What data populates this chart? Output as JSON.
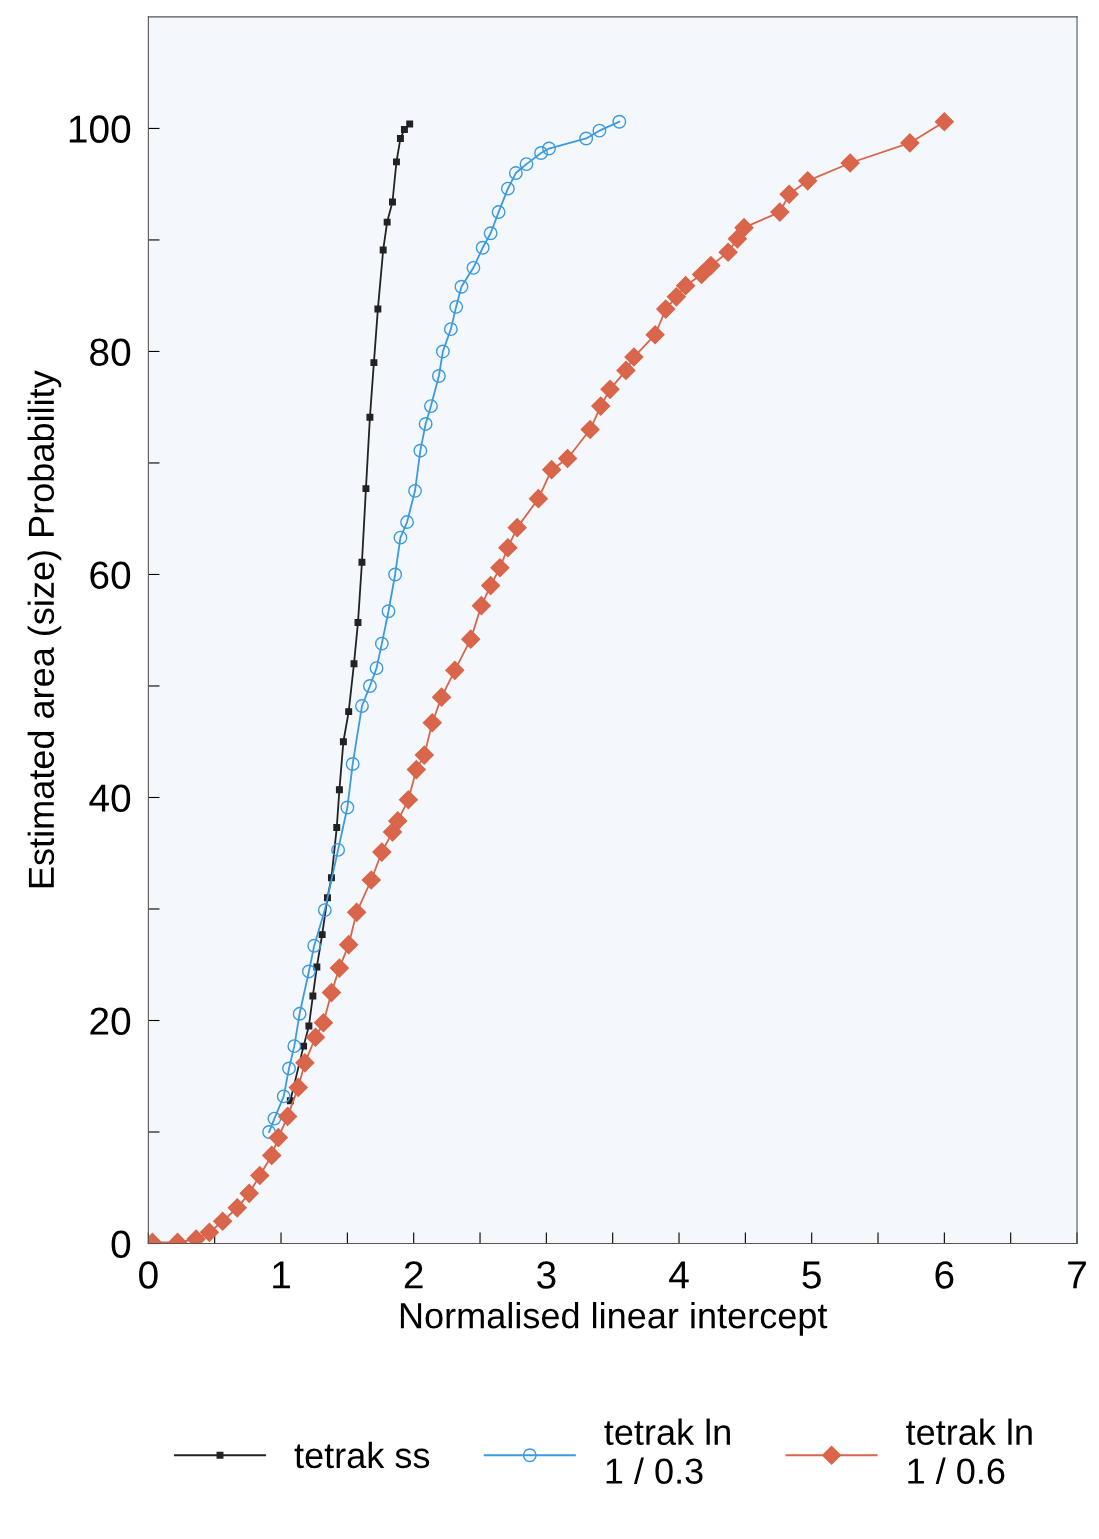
{
  "chart_data": {
    "type": "line",
    "xlabel": "Normalised linear intercept",
    "ylabel": "Estimated area (size) Probability",
    "xlim": [
      0,
      7
    ],
    "ylim": [
      0,
      110
    ],
    "xticks": [
      0,
      {
        "value": 0.5,
        "label": null
      },
      1,
      {
        "value": 1.5,
        "label": null
      },
      2,
      {
        "value": 2.5,
        "label": null
      },
      3,
      {
        "value": 3.5,
        "label": null
      },
      4,
      {
        "value": 4.5,
        "label": null
      },
      5,
      {
        "value": 5.5,
        "label": null
      },
      6,
      {
        "value": 6.5,
        "label": null
      },
      7
    ],
    "yticks": [
      0,
      {
        "value": 10,
        "label": null
      },
      20,
      {
        "value": 30,
        "label": null
      },
      40,
      {
        "value": 50,
        "label": null
      },
      60,
      {
        "value": 70,
        "label": null
      },
      80,
      {
        "value": 90,
        "label": null
      },
      100
    ],
    "grid": false,
    "legend": "bottom",
    "line_style": "solid",
    "series": [
      {
        "name": "tetrak ss",
        "color": "#222222",
        "marker": "square",
        "x": [
          1.07,
          1.17,
          1.21,
          1.24,
          1.27,
          1.31,
          1.35,
          1.38,
          1.42,
          1.44,
          1.47,
          1.51,
          1.55,
          1.58,
          1.61,
          1.64,
          1.67,
          1.7,
          1.73,
          1.77,
          1.8,
          1.84,
          1.87,
          1.9,
          1.93,
          1.97
        ],
        "values": [
          12.8,
          17.7,
          19.5,
          22.2,
          24.8,
          27.7,
          31.0,
          32.8,
          37.3,
          40.7,
          45.0,
          47.7,
          52.0,
          55.7,
          61.1,
          67.7,
          74.1,
          79.0,
          83.8,
          89.1,
          91.6,
          93.4,
          97.0,
          99.1,
          99.9,
          100.4
        ]
      },
      {
        "name": "tetrak ln\n1 / 0.3",
        "color": "#3b9ae0",
        "marker": "circle",
        "x": [
          0.91,
          0.95,
          1.02,
          1.06,
          1.1,
          1.14,
          1.21,
          1.25,
          1.33,
          1.43,
          1.5,
          1.54,
          1.61,
          1.67,
          1.72,
          1.76,
          1.81,
          1.86,
          1.9,
          1.95,
          2.01,
          2.05,
          2.09,
          2.13,
          2.19,
          2.22,
          2.28,
          2.32,
          2.36,
          2.45,
          2.52,
          2.58,
          2.64,
          2.71,
          2.77,
          2.85,
          2.96,
          3.02,
          3.3,
          3.4,
          3.55
        ],
        "values": [
          10.0,
          11.2,
          13.2,
          15.7,
          17.7,
          20.6,
          24.4,
          26.7,
          29.9,
          35.3,
          39.1,
          43.0,
          48.2,
          50.0,
          51.6,
          53.8,
          56.7,
          60.0,
          63.3,
          64.7,
          67.5,
          71.1,
          73.5,
          75.1,
          77.8,
          80.0,
          82.0,
          84.0,
          85.8,
          87.5,
          89.3,
          90.6,
          92.5,
          94.6,
          96.0,
          96.8,
          97.8,
          98.2,
          99.1,
          99.8,
          100.6
        ]
      },
      {
        "name": "tetrak ln\n1 / 0.6",
        "color": "#d9654a",
        "marker": "diamond",
        "x": [
          0.03,
          0.22,
          0.36,
          0.46,
          0.56,
          0.67,
          0.76,
          0.84,
          0.93,
          0.98,
          1.05,
          1.13,
          1.18,
          1.26,
          1.32,
          1.38,
          1.44,
          1.51,
          1.57,
          1.68,
          1.76,
          1.84,
          1.88,
          1.96,
          2.02,
          2.08,
          2.14,
          2.21,
          2.31,
          2.43,
          2.51,
          2.58,
          2.65,
          2.71,
          2.78,
          2.94,
          3.04,
          3.16,
          3.33,
          3.41,
          3.48,
          3.6,
          3.66,
          3.82,
          3.9,
          3.98,
          4.05,
          4.17,
          4.24,
          4.37,
          4.44,
          4.49,
          4.76,
          4.83,
          4.97,
          5.29,
          5.74,
          6.0
        ],
        "values": [
          0.1,
          0.1,
          0.4,
          1.0,
          2.0,
          3.2,
          4.5,
          6.1,
          7.9,
          9.5,
          11.4,
          14.0,
          16.2,
          18.5,
          19.8,
          22.5,
          24.7,
          26.8,
          29.7,
          32.6,
          35.1,
          36.9,
          37.9,
          39.8,
          42.5,
          43.8,
          46.7,
          49.0,
          51.4,
          54.2,
          57.2,
          59.0,
          60.6,
          62.4,
          64.2,
          66.8,
          69.4,
          70.4,
          73.0,
          75.1,
          76.6,
          78.3,
          79.5,
          81.5,
          83.8,
          84.9,
          85.9,
          86.9,
          87.7,
          88.9,
          90.1,
          91.1,
          92.5,
          94.1,
          95.3,
          96.9,
          98.7,
          100.6
        ]
      }
    ]
  }
}
